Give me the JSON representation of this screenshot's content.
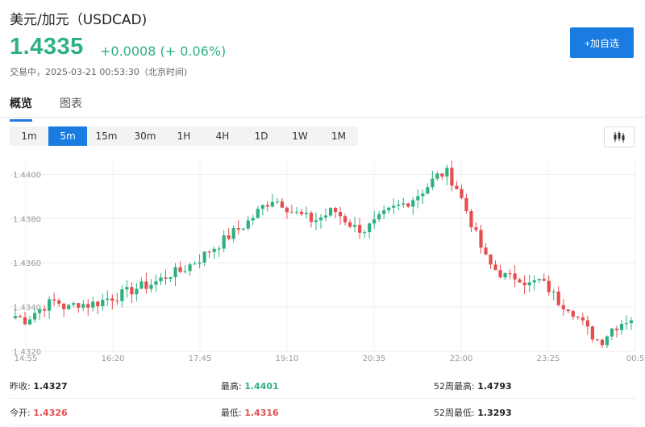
{
  "header": {
    "title": "美元/加元（USDCAD)",
    "price": "1.4335",
    "change": "+0.0008 (+ 0.06%)",
    "status": "交易中，2025-03-21 00:53:30（北京时间)",
    "add_watchlist": "+加自选"
  },
  "tabs": [
    {
      "label": "概览",
      "active": true
    },
    {
      "label": "图表",
      "active": false
    }
  ],
  "intervals": [
    "1m",
    "5m",
    "15m",
    "30m",
    "1H",
    "4H",
    "1D",
    "1W",
    "1M"
  ],
  "selected_interval": "5m",
  "chart_type_icon": "candlestick-icon",
  "colors": {
    "up": "#2eb181",
    "down": "#e54d4f",
    "accent": "#1a7be0"
  },
  "chart_data": {
    "type": "candlestick",
    "x_ticks": [
      "14:55",
      "16:20",
      "17:45",
      "19:10",
      "20:35",
      "22:00",
      "23:25",
      "00:5"
    ],
    "y_ticks": [
      "1.4400",
      "1.4380",
      "1.4360",
      "1.4340",
      "1.4320"
    ],
    "ylim": [
      1.432,
      1.4406
    ],
    "grid": true,
    "close_path": [
      1.4336,
      1.4334,
      1.4338,
      1.4341,
      1.4343,
      1.4339,
      1.4342,
      1.4341,
      1.4342,
      1.4344,
      1.4345,
      1.4347,
      1.4349,
      1.435,
      1.4352,
      1.4355,
      1.4356,
      1.4359,
      1.4362,
      1.4366,
      1.4369,
      1.4373,
      1.4376,
      1.438,
      1.4385,
      1.4389,
      1.4387,
      1.4383,
      1.4381,
      1.4379,
      1.4381,
      1.4384,
      1.438,
      1.4376,
      1.4375,
      1.4378,
      1.4382,
      1.4385,
      1.4387,
      1.439,
      1.4394,
      1.4399,
      1.4401,
      1.4394,
      1.4383,
      1.4371,
      1.436,
      1.4356,
      1.4353,
      1.4354,
      1.435,
      1.4352,
      1.4348,
      1.4342,
      1.434,
      1.4334,
      1.4328,
      1.4324,
      1.433,
      1.4333,
      1.4335
    ]
  },
  "stats": [
    [
      {
        "label": "昨收:",
        "value": "1.4327",
        "tone": "neutral"
      },
      {
        "label": "最高:",
        "value": "1.4401",
        "tone": "up"
      },
      {
        "label": "52周最高:",
        "value": "1.4793",
        "tone": "neutral"
      }
    ],
    [
      {
        "label": "今开:",
        "value": "1.4326",
        "tone": "down"
      },
      {
        "label": "最低:",
        "value": "1.4316",
        "tone": "down"
      },
      {
        "label": "52周最低:",
        "value": "1.3293",
        "tone": "neutral"
      }
    ]
  ]
}
